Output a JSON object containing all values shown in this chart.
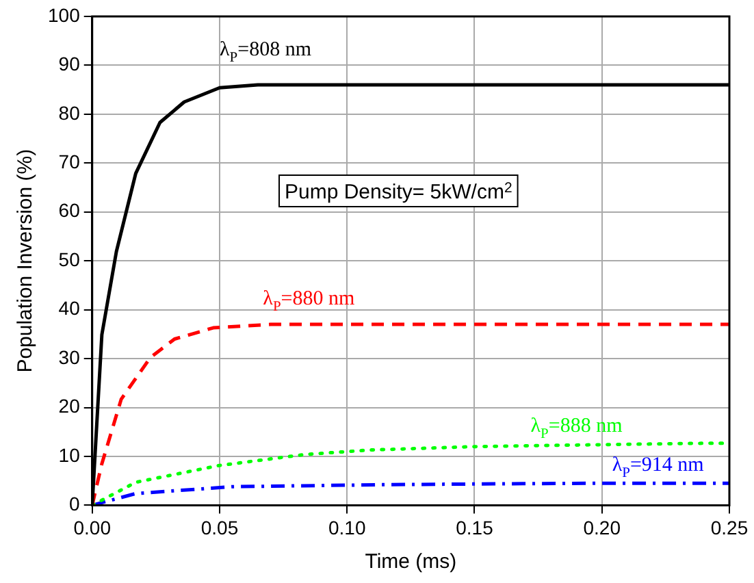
{
  "chart_data": {
    "type": "line",
    "xlabel": "Time (ms)",
    "ylabel": "Population Inversion (%)",
    "xlim": [
      0,
      0.25
    ],
    "xticks": [
      {
        "value": 0,
        "label": "0.00"
      },
      {
        "value": 0.05,
        "label": "0.05"
      },
      {
        "value": 0.1,
        "label": "0.10"
      },
      {
        "value": 0.15,
        "label": "0.15"
      },
      {
        "value": 0.2,
        "label": "0.20"
      },
      {
        "value": 0.25,
        "label": "0.25"
      }
    ],
    "ylim": [
      0,
      100
    ],
    "yticks": [
      0,
      10,
      20,
      30,
      40,
      50,
      60,
      70,
      80,
      90,
      100
    ],
    "grid": true,
    "legend": false,
    "marker": "none",
    "series": [
      {
        "name": "λ$_{P}$=808 nm",
        "color": "#000000",
        "line_style": "solid",
        "x": [
          0,
          0.0038,
          0.0095,
          0.0171,
          0.0266,
          0.0361,
          0.05,
          0.065,
          0.08,
          0.25
        ],
        "values": [
          0,
          34.9,
          51.9,
          67.9,
          78.3,
          82.5,
          85.4,
          86,
          86,
          86
        ]
      },
      {
        "name": "λ$_{P}$=880 nm",
        "color": "#ff0000",
        "line_style": "dashed",
        "x": [
          0,
          0.0038,
          0.0114,
          0.0228,
          0.0323,
          0.0475,
          0.07,
          0.1,
          0.25
        ],
        "values": [
          0,
          8.5,
          21.7,
          30.2,
          34,
          36.3,
          37,
          37,
          37
        ]
      },
      {
        "name": "λ$_{P}$=888 nm",
        "color": "#00ff00",
        "line_style": "dotted",
        "x": [
          0,
          0.0171,
          0.0494,
          0.0836,
          0.109,
          0.15,
          0.2,
          0.243,
          0.25
        ],
        "values": [
          0,
          4.7,
          8.1,
          10.4,
          11.3,
          12,
          12.4,
          12.7,
          12.7
        ]
      },
      {
        "name": "λ$_{P}$=914 nm",
        "color": "#0000ff",
        "line_style": "dashdot",
        "x": [
          0,
          0.0171,
          0.055,
          0.1126,
          0.16,
          0.2,
          0.25
        ],
        "values": [
          0,
          2.4,
          3.8,
          4.2,
          4.4,
          4.5,
          4.5
        ]
      }
    ],
    "annotations": [
      "Pump Density= 5kW/cm$^{2}$"
    ]
  }
}
